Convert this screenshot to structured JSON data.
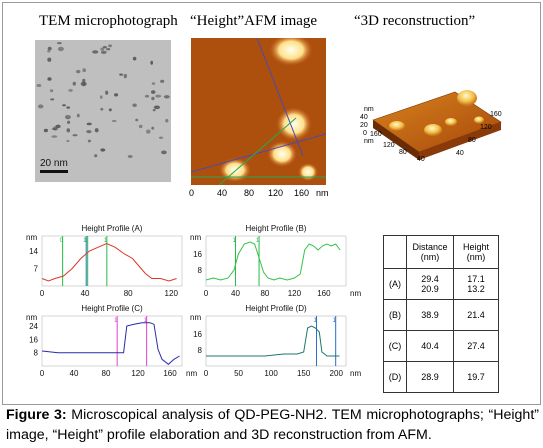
{
  "panels": {
    "tem_title": "TEM microphotograph",
    "afm_title": "“Height”AFM image",
    "recon_title": "“3D reconstruction”",
    "scale_bar": "20 nm"
  },
  "afm_axis": {
    "ticks": [
      "0",
      "40",
      "80",
      "120",
      "160"
    ],
    "unit": "nm"
  },
  "recon_axis": {
    "z_unit": "nm",
    "z_ticks": [
      "40",
      "20",
      "0"
    ],
    "x_ticks": [
      "160",
      "120",
      "80",
      "40"
    ],
    "y_ticks": [
      "160",
      "120",
      "80",
      "40"
    ],
    "corner_unit": "nm"
  },
  "chart_data": [
    {
      "type": "line",
      "title": "Height Profile (A)",
      "ylabel": "nm",
      "xunit": "",
      "xticks": [
        "0",
        "40",
        "80",
        "120"
      ],
      "yticks": [
        "7",
        "14"
      ],
      "xlim": [
        0,
        130
      ],
      "ylim": [
        0,
        20
      ],
      "series": [
        {
          "values": [
            [
              0,
              3
            ],
            [
              6,
              2
            ],
            [
              12,
              3
            ],
            [
              20,
              4
            ],
            [
              28,
              7
            ],
            [
              36,
              11
            ],
            [
              44,
              14
            ],
            [
              52,
              15.5
            ],
            [
              60,
              17
            ],
            [
              68,
              15.5
            ],
            [
              76,
              13
            ],
            [
              84,
              11
            ],
            [
              90,
              8
            ],
            [
              96,
              5
            ],
            [
              102,
              3
            ],
            [
              110,
              3
            ],
            [
              118,
              2
            ],
            [
              125,
              3
            ]
          ]
        }
      ],
      "markers": [
        "0",
        "1",
        "1",
        "1"
      ]
    },
    {
      "type": "line",
      "title": "Height Profile (B)",
      "ylabel": "nm",
      "xunit": "nm",
      "xticks": [
        "0",
        "40",
        "80",
        "120",
        "160"
      ],
      "yticks": [
        "8",
        "16"
      ],
      "xlim": [
        0,
        190
      ],
      "ylim": [
        0,
        25
      ],
      "series": [
        {
          "values": [
            [
              0,
              3
            ],
            [
              10,
              4
            ],
            [
              20,
              3
            ],
            [
              30,
              4
            ],
            [
              38,
              8
            ],
            [
              44,
              16
            ],
            [
              52,
              21
            ],
            [
              60,
              22
            ],
            [
              66,
              21
            ],
            [
              72,
              14
            ],
            [
              78,
              7
            ],
            [
              84,
              4
            ],
            [
              92,
              3
            ],
            [
              100,
              4
            ],
            [
              110,
              3
            ],
            [
              120,
              4
            ],
            [
              128,
              6
            ],
            [
              134,
              18
            ],
            [
              140,
              21
            ],
            [
              146,
              20
            ],
            [
              152,
              18
            ],
            [
              158,
              20
            ],
            [
              164,
              21
            ],
            [
              170,
              20
            ],
            [
              176,
              21
            ],
            [
              182,
              18
            ]
          ]
        }
      ],
      "markers": [
        "1",
        "1"
      ]
    },
    {
      "type": "line",
      "title": "Height Profile (C)",
      "ylabel": "nm",
      "xunit": "nm",
      "xticks": [
        "0",
        "40",
        "80",
        "120",
        "160"
      ],
      "yticks": [
        "8",
        "16",
        "24"
      ],
      "xlim": [
        0,
        175
      ],
      "ylim": [
        0,
        30
      ],
      "series": [
        {
          "values": [
            [
              0,
              9
            ],
            [
              20,
              8
            ],
            [
              40,
              8
            ],
            [
              60,
              8
            ],
            [
              80,
              8
            ],
            [
              95,
              8
            ],
            [
              102,
              8
            ],
            [
              106,
              24
            ],
            [
              115,
              25
            ],
            [
              125,
              26
            ],
            [
              135,
              26
            ],
            [
              140,
              25
            ],
            [
              145,
              10
            ],
            [
              150,
              4
            ],
            [
              158,
              1
            ],
            [
              165,
              4
            ],
            [
              172,
              6
            ]
          ]
        }
      ],
      "markers": [
        "1",
        "1"
      ]
    },
    {
      "type": "line",
      "title": "Height Profile (D)",
      "ylabel": "nm",
      "xunit": "nm",
      "xticks": [
        "0",
        "50",
        "100",
        "150",
        "200"
      ],
      "yticks": [
        "8",
        "16"
      ],
      "xlim": [
        0,
        215
      ],
      "ylim": [
        0,
        25
      ],
      "series": [
        {
          "values": [
            [
              0,
              5
            ],
            [
              30,
              5
            ],
            [
              60,
              5
            ],
            [
              90,
              5
            ],
            [
              120,
              6
            ],
            [
              140,
              6
            ],
            [
              150,
              7
            ],
            [
              156,
              19
            ],
            [
              162,
              20
            ],
            [
              168,
              19
            ],
            [
              174,
              17
            ],
            [
              178,
              7
            ],
            [
              186,
              5
            ],
            [
              196,
              5
            ],
            [
              205,
              5
            ]
          ]
        }
      ],
      "markers": [
        "1",
        "1"
      ]
    }
  ],
  "table": {
    "headers": [
      "",
      "Distance\n(nm)",
      "Height\n(nm)"
    ],
    "rows": [
      {
        "label": "(A)",
        "distance": "29.4\n20.9",
        "height": "17.1\n13.2"
      },
      {
        "label": "(B)",
        "distance": "38.9",
        "height": "21.4"
      },
      {
        "label": "(C)",
        "distance": "40.4",
        "height": "27.4"
      },
      {
        "label": "(D)",
        "distance": "28.9",
        "height": "19.7"
      }
    ]
  },
  "caption": {
    "label": "Figure 3:",
    "text": " Microscopical analysis of QD-PEG-NH2. TEM microphotographs; “Height” image, “Height” profile elaboration and 3D reconstruction from AFM."
  },
  "colors": {
    "A": "#d93a2a",
    "B": "#34c24a",
    "C": "#2a2aa8",
    "D": "#1a7a6a",
    "marker_green": "#22bb44",
    "marker_blue": "#2a6cc0",
    "marker_magenta": "#e040d0"
  }
}
